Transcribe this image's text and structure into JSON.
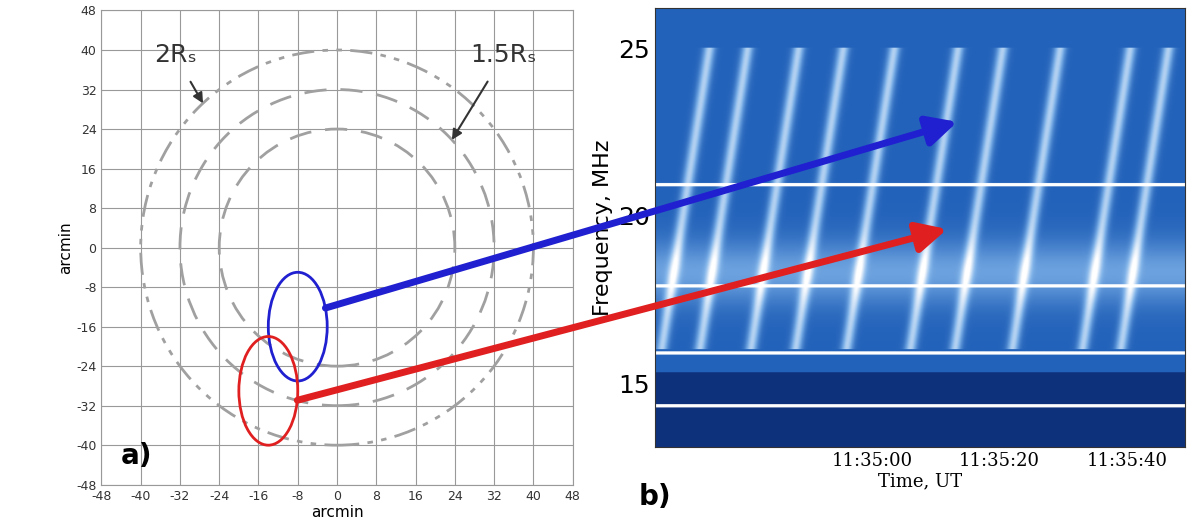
{
  "chart_data": [
    {
      "type": "sky_map",
      "panel_label": "a)",
      "x_label": "arcmin",
      "y_label": "arcmin",
      "xlim": [
        -48,
        48
      ],
      "ylim": [
        -48,
        48
      ],
      "xticks": [
        -48,
        -40,
        -32,
        -24,
        -16,
        -8,
        0,
        8,
        16,
        24,
        32,
        40,
        48
      ],
      "yticks": [
        -48,
        -40,
        -32,
        -24,
        -16,
        -8,
        0,
        8,
        16,
        24,
        32,
        40,
        48
      ],
      "grid": true,
      "circles": [
        {
          "radius": 24,
          "line_style": "dashed"
        },
        {
          "radius": 32,
          "line_style": "dashed"
        },
        {
          "radius": 40,
          "line_style": "dashdot"
        }
      ],
      "annotations": [
        {
          "text": "2Rₛ",
          "xy": [
            -27.3,
            29.2
          ],
          "xytext": [
            -33,
            39
          ]
        },
        {
          "text": "1.5Rₛ",
          "xy": [
            23.4,
            21.8
          ],
          "xytext": [
            34,
            39
          ]
        }
      ],
      "sources": [
        {
          "color": "#2020d0",
          "center": [
            -8,
            -16
          ],
          "width": 12,
          "height": 22
        },
        {
          "color": "#e02020",
          "center": [
            -14,
            -29
          ],
          "width": 12,
          "height": 22
        }
      ]
    },
    {
      "type": "spectrogram",
      "panel_label": "b)",
      "x_label": "Time, UT",
      "y_label": "Frequency, MHz",
      "xlim": [
        -34,
        49
      ],
      "ylim": [
        13.1,
        26.2
      ],
      "xticks": [
        {
          "value": 0,
          "label": "11:35:00"
        },
        {
          "value": 20,
          "label": "11:35:20"
        },
        {
          "value": 40,
          "label": "11:35:40"
        }
      ],
      "yticks": [
        15,
        20,
        25
      ],
      "burst_times": [
        -33,
        -27,
        -19,
        -12,
        -4,
        6,
        13,
        22,
        33,
        39
      ],
      "burst_band_mhz": [
        16,
        25
      ],
      "drift_mhz_per_s": 1.2,
      "interference_mhz": [
        20.9,
        17.9,
        15.9,
        14.3
      ],
      "arrows": [
        {
          "source": 0,
          "time": 13.4,
          "frequency": 22.8
        },
        {
          "source": 1,
          "time": 11.8,
          "frequency": 19.6
        }
      ]
    }
  ]
}
